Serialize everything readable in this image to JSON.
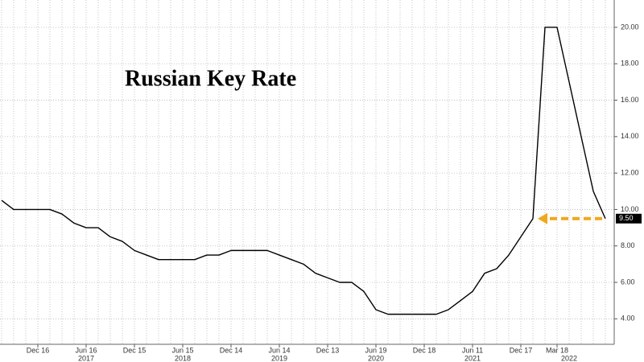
{
  "chart_data": {
    "type": "line",
    "title": "Russian Key Rate",
    "categories": [
      null,
      null,
      null,
      "Dec 16",
      null,
      null,
      null,
      "Jun 16",
      null,
      null,
      null,
      "Dec 15",
      null,
      null,
      null,
      "Jun 15",
      null,
      null,
      null,
      "Dec 14",
      null,
      null,
      null,
      "Jun 14",
      null,
      null,
      null,
      "Dec 13",
      null,
      null,
      null,
      "Jun 19",
      null,
      null,
      null,
      "Dec 18",
      null,
      null,
      null,
      "Jun 11",
      null,
      null,
      null,
      "Dec 17",
      null,
      null,
      "Mar 18",
      null,
      null,
      null,
      null
    ],
    "year_labels": [
      "2017",
      "2018",
      "2019",
      "2020",
      "2021",
      "2022"
    ],
    "series": [
      {
        "name": "Russian Key Rate",
        "color": "#000000",
        "values": [
          10.5,
          10.0,
          10.0,
          10.0,
          10.0,
          9.75,
          9.25,
          9.0,
          9.0,
          8.5,
          8.25,
          7.75,
          7.5,
          7.25,
          7.25,
          7.25,
          7.25,
          7.5,
          7.5,
          7.75,
          7.75,
          7.75,
          7.75,
          7.5,
          7.25,
          7.0,
          6.5,
          6.25,
          6.0,
          6.0,
          5.5,
          4.5,
          4.25,
          4.25,
          4.25,
          4.25,
          4.25,
          4.5,
          5.0,
          5.5,
          6.5,
          6.75,
          7.5,
          8.5,
          9.5,
          20.0,
          20.0,
          17.0,
          14.0,
          11.0,
          9.5
        ]
      }
    ],
    "last_value_label": "9.50",
    "arrow_color": "#f0a81c",
    "ylim": [
      2.6,
      21.5
    ],
    "yticks": [
      {
        "value": 4,
        "label": "4.00"
      },
      {
        "value": 6,
        "label": "6.00"
      },
      {
        "value": 8,
        "label": "8.00"
      },
      {
        "value": 10,
        "label": "10.00"
      },
      {
        "value": 12,
        "label": "12.00"
      },
      {
        "value": 14,
        "label": "14.00"
      },
      {
        "value": 16,
        "label": "16.00"
      },
      {
        "value": 18,
        "label": "18.00"
      },
      {
        "value": 20,
        "label": "20.00"
      }
    ],
    "grid": true
  }
}
